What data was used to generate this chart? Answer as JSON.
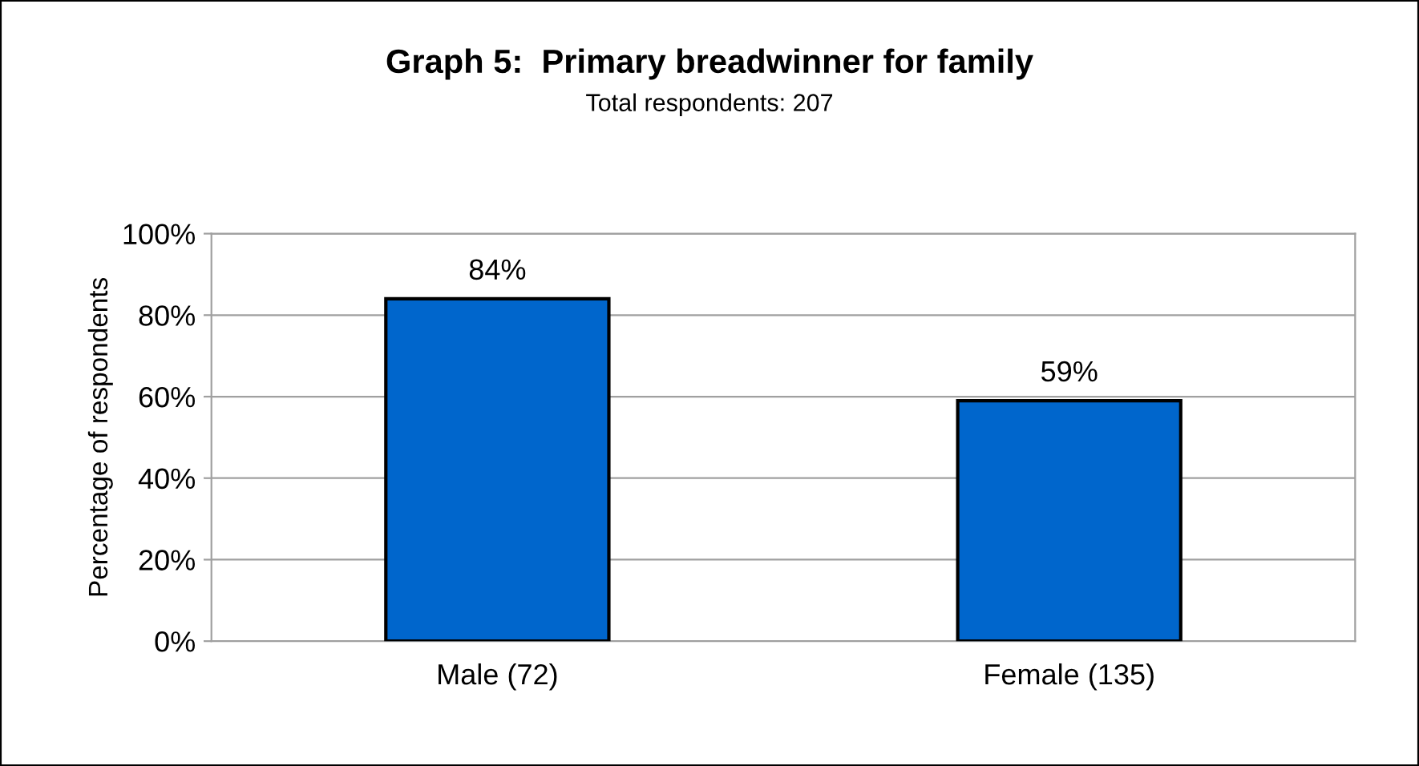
{
  "chart_data": {
    "type": "bar",
    "title": "Graph 5:  Primary breadwinner for family",
    "subtitle": "Total respondents: 207",
    "ylabel": "Percentage of respondents",
    "categories": [
      "Male (72)",
      "Female (135)"
    ],
    "values": [
      84,
      59
    ],
    "value_labels": [
      "84%",
      "59%"
    ],
    "color": "#0066cc",
    "ylim": [
      0,
      100
    ],
    "yticks": [
      {
        "value": 0,
        "label": "0%"
      },
      {
        "value": 20,
        "label": "20%"
      },
      {
        "value": 40,
        "label": "40%"
      },
      {
        "value": 60,
        "label": "60%"
      },
      {
        "value": 80,
        "label": "80%"
      },
      {
        "value": 100,
        "label": "100%"
      }
    ],
    "grid": "y",
    "legend": false
  }
}
